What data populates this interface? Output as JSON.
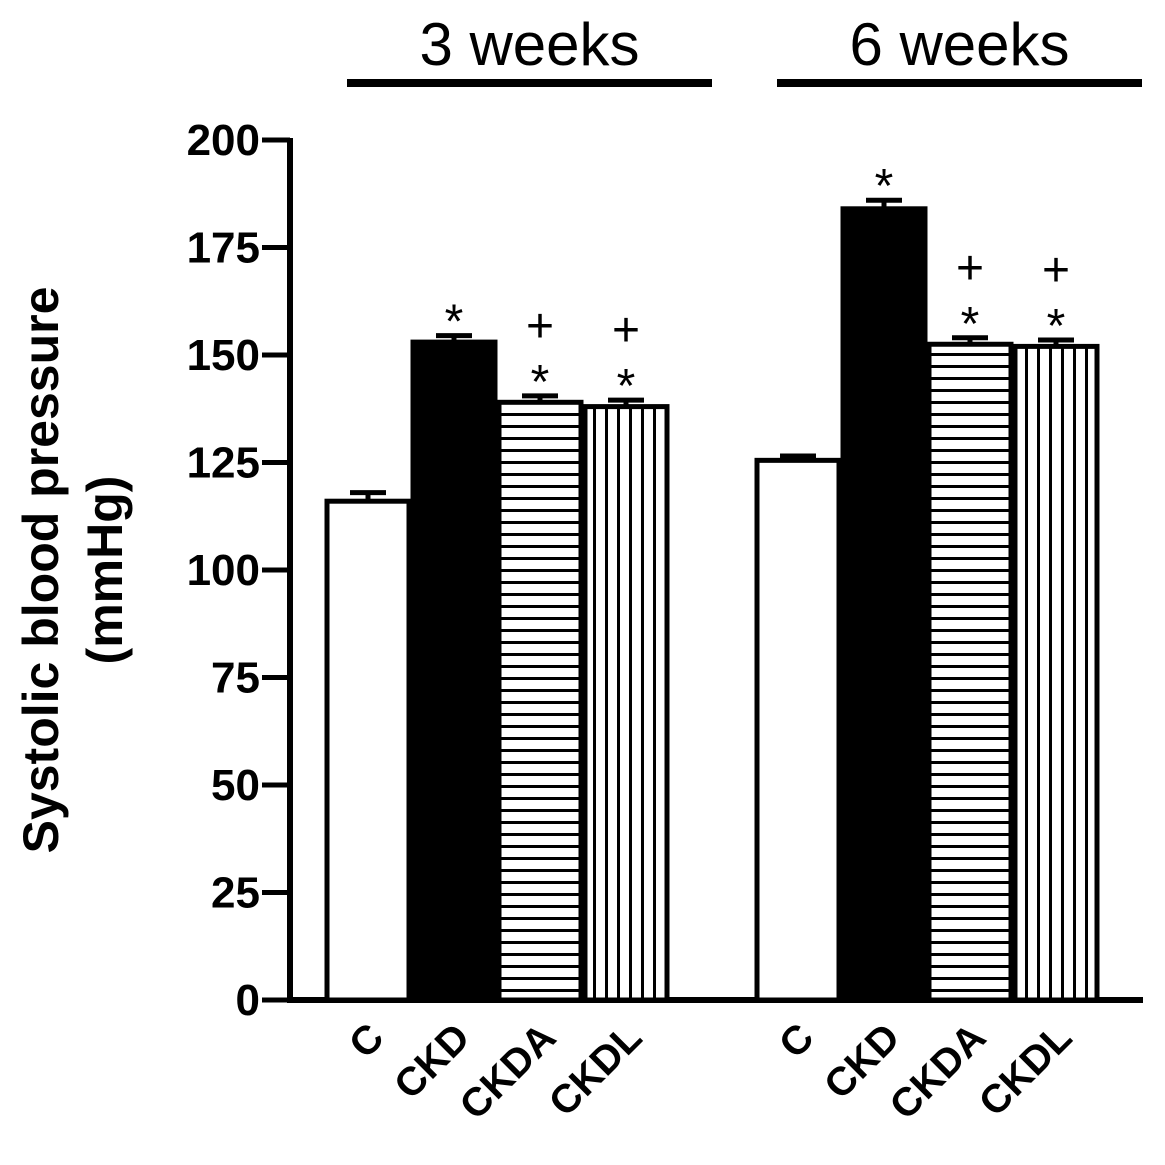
{
  "chart_data": {
    "type": "bar",
    "ylabel_line1": "Systolic blood pressure",
    "ylabel_line2": "(mmHg)",
    "ylim": [
      0,
      200
    ],
    "yticks": [
      0,
      25,
      50,
      75,
      100,
      125,
      150,
      175,
      200
    ],
    "groups": [
      {
        "label": "3 weeks",
        "bars": [
          {
            "category": "C",
            "value": 116,
            "error": 2,
            "fill": "white",
            "annotation": []
          },
          {
            "category": "CKD",
            "value": 153,
            "error": 1.5,
            "fill": "black",
            "annotation": [
              "*"
            ]
          },
          {
            "category": "CKDA",
            "value": 139,
            "error": 1.5,
            "fill": "hstripes",
            "annotation": [
              "+",
              "*"
            ]
          },
          {
            "category": "CKDL",
            "value": 138,
            "error": 1.5,
            "fill": "vstripes",
            "annotation": [
              "+",
              "*"
            ]
          }
        ]
      },
      {
        "label": "6 weeks",
        "bars": [
          {
            "category": "C",
            "value": 125.5,
            "error": 1,
            "fill": "white",
            "annotation": []
          },
          {
            "category": "CKD",
            "value": 184,
            "error": 2,
            "fill": "black",
            "annotation": [
              "*"
            ]
          },
          {
            "category": "CKDA",
            "value": 152.5,
            "error": 1.5,
            "fill": "hstripes",
            "annotation": [
              "+",
              "*"
            ]
          },
          {
            "category": "CKDL",
            "value": 152,
            "error": 1.5,
            "fill": "vstripes",
            "annotation": [
              "+",
              "*"
            ]
          }
        ]
      }
    ]
  }
}
